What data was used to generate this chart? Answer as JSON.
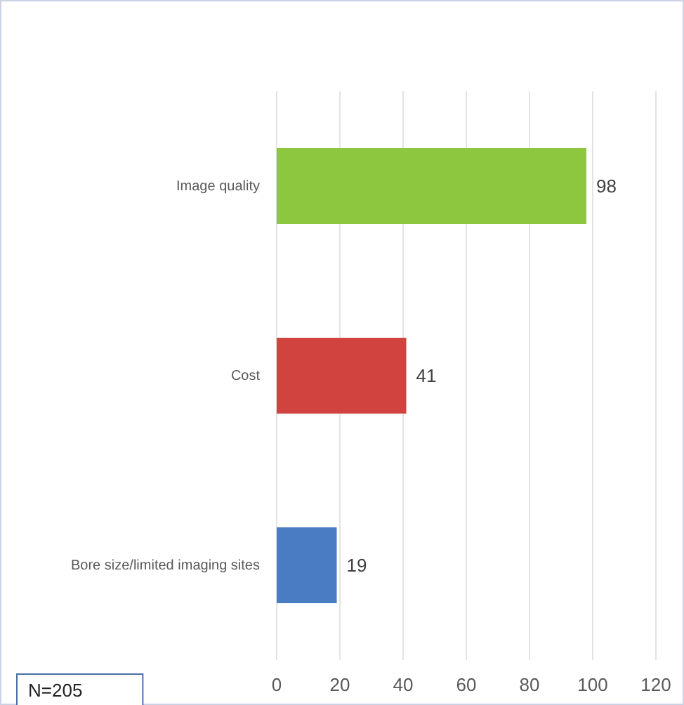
{
  "chart_data": {
    "type": "bar",
    "orientation": "horizontal",
    "categories": [
      "Image quality",
      "Cost",
      "Bore size/limited imaging sites"
    ],
    "values": [
      98,
      41,
      19
    ],
    "colors": [
      "#8dc63f",
      "#d0433f",
      "#4a7cc4"
    ],
    "xlim": [
      0,
      120
    ],
    "xticks": [
      0,
      20,
      40,
      60,
      80,
      100,
      120
    ],
    "grid": "x",
    "data_labels": true,
    "annotations": [
      "N=205"
    ]
  }
}
